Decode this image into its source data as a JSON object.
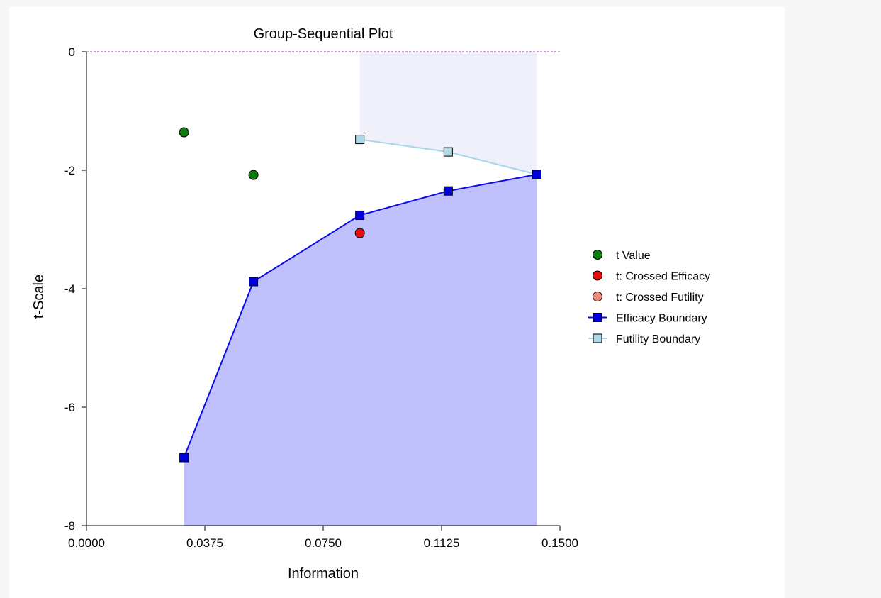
{
  "colors": {
    "background": "#f7f7f8",
    "panel": "#ffffff",
    "efficacy_line": "#0a0aee",
    "efficacy_marker": "#0000dd",
    "efficacy_region": "#c0c0fd",
    "futility_line": "#a9d6e6",
    "futility_marker": "#add8e6",
    "futility_region": "#f0f0fb",
    "t_value": "#0a7d0a",
    "crossed_efficacy": "#ee0b0b",
    "crossed_futility": "#f08878",
    "zero_line": "#9b3fa6"
  },
  "chart_data": {
    "type": "line",
    "title": "Group-Sequential Plot",
    "xlabel": "Information",
    "ylabel": "t-Scale",
    "xlim": [
      0,
      0.15
    ],
    "ylim": [
      -8,
      0
    ],
    "xticks": [
      "0.0000",
      "0.0375",
      "0.0750",
      "0.1125",
      "0.1500"
    ],
    "xtick_values": [
      0,
      0.0375,
      0.075,
      0.1125,
      0.15
    ],
    "yticks": [
      "0",
      "-2",
      "-4",
      "-6",
      "-8"
    ],
    "ytick_values": [
      0,
      -2,
      -4,
      -6,
      -8
    ],
    "reference_line_y": 0,
    "series": [
      {
        "name": "t Value",
        "kind": "points",
        "marker": "circle",
        "color": "#0a7d0a",
        "x": [
          0.0309,
          0.0529
        ],
        "y": [
          -1.36,
          -2.08
        ]
      },
      {
        "name": "t: Crossed Efficacy",
        "kind": "points",
        "marker": "circle",
        "color": "#ee0b0b",
        "x": [
          0.0866
        ],
        "y": [
          -3.06
        ]
      },
      {
        "name": "t: Crossed Futility",
        "kind": "points",
        "marker": "circle",
        "color": "#f08878",
        "x": [],
        "y": []
      },
      {
        "name": "Efficacy Boundary",
        "kind": "line",
        "marker": "square",
        "color": "#0000dd",
        "x": [
          0.0309,
          0.0529,
          0.0866,
          0.1146,
          0.1427
        ],
        "y": [
          -6.85,
          -3.88,
          -2.76,
          -2.35,
          -2.07
        ]
      },
      {
        "name": "Futility Boundary",
        "kind": "line",
        "marker": "square",
        "color": "#add8e6",
        "x": [
          0.0866,
          0.1146,
          0.1427
        ],
        "y": [
          -1.48,
          -1.69,
          -2.07
        ]
      }
    ],
    "legend_position": "right"
  }
}
